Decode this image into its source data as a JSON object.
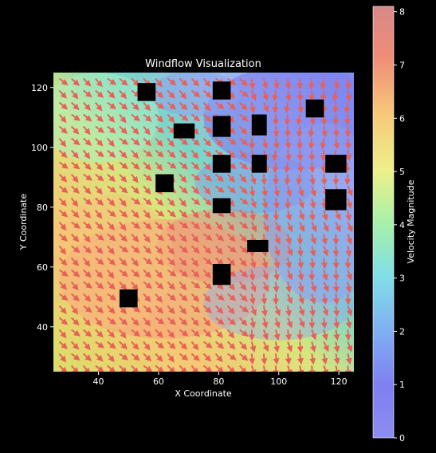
{
  "chart_data": {
    "type": "heatmap",
    "title": "Windflow Visualization",
    "xlabel": "X Coordinate",
    "ylabel": "Y Coordinate",
    "colorbar_label": "Velocity Magnitude",
    "xlim": [
      25,
      125
    ],
    "ylim": [
      25,
      125
    ],
    "x_ticks": [
      40,
      60,
      80,
      100,
      120
    ],
    "y_ticks": [
      40,
      60,
      80,
      100,
      120
    ],
    "colorbar_range": [
      0,
      8.1
    ],
    "colorbar_ticks": [
      0,
      1,
      2,
      3,
      4,
      5,
      6,
      7,
      8
    ],
    "colormap": "jet",
    "overlay": "velocity vectors (quiver), mostly pointing down and to the right",
    "arrow_color": "#e8605a",
    "obstacles": [
      {
        "x": 56,
        "y": 118.5,
        "w": 6,
        "h": 6
      },
      {
        "x": 81,
        "y": 119,
        "w": 6,
        "h": 6
      },
      {
        "x": 68.5,
        "y": 105.5,
        "w": 7,
        "h": 5
      },
      {
        "x": 81,
        "y": 107,
        "w": 6,
        "h": 7
      },
      {
        "x": 93.5,
        "y": 107.5,
        "w": 5,
        "h": 7
      },
      {
        "x": 112,
        "y": 113,
        "w": 6,
        "h": 6
      },
      {
        "x": 81,
        "y": 94.5,
        "w": 6,
        "h": 6
      },
      {
        "x": 93.5,
        "y": 94.5,
        "w": 5,
        "h": 6
      },
      {
        "x": 119,
        "y": 94.5,
        "w": 7,
        "h": 6
      },
      {
        "x": 62,
        "y": 88,
        "w": 6,
        "h": 6
      },
      {
        "x": 81,
        "y": 80.5,
        "w": 6,
        "h": 5
      },
      {
        "x": 119,
        "y": 82.5,
        "w": 7,
        "h": 7
      },
      {
        "x": 93,
        "y": 67,
        "w": 7,
        "h": 4
      },
      {
        "x": 81,
        "y": 57.5,
        "w": 6,
        "h": 7
      },
      {
        "x": 50,
        "y": 49.5,
        "w": 6,
        "h": 6
      }
    ]
  }
}
